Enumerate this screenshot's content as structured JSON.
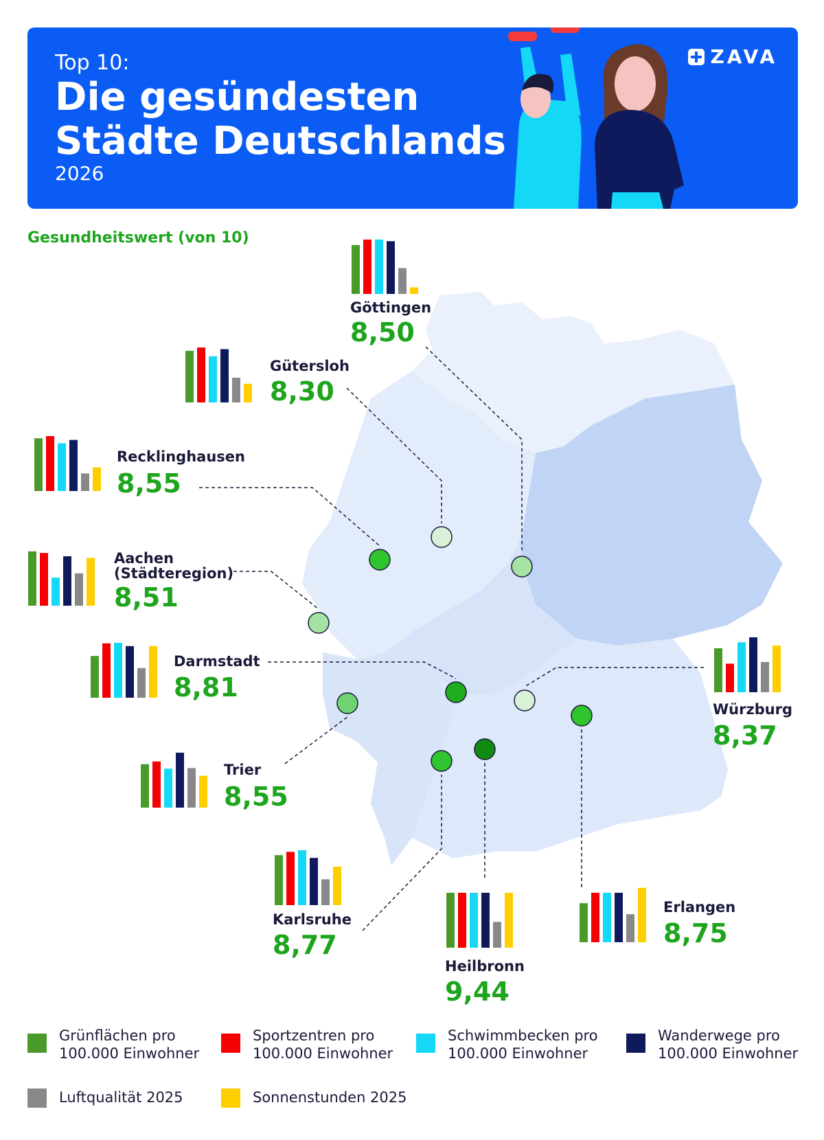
{
  "header": {
    "kicker": "Top 10:",
    "title_line1": "Die gesündesten",
    "title_line2": "Städte Deutschlands",
    "year": "2026",
    "logo": "ZAVA",
    "bg_color": "#0a5cf5"
  },
  "subtitle": "Gesundheitswert (von 10)",
  "chart_data": {
    "type": "bar",
    "title": "Gesundheitswert (von 10)",
    "categories": [
      "Grünflächen pro 100.000 Einwohner",
      "Sportzentren pro 100.000 Einwohner",
      "Schwimmbecken pro 100.000 Einwohner",
      "Wanderwege pro 100.000 Einwohner",
      "Luftqualität 2025",
      "Sonnenstunden 2025"
    ],
    "colors": [
      "#4a9a2a",
      "#f40000",
      "#14d8f5",
      "#0e1a5c",
      "#888888",
      "#ffce00"
    ],
    "ylim": [
      0,
      1
    ],
    "cities": [
      {
        "name": "Göttingen",
        "score": "8,50",
        "values": [
          0.89,
          0.99,
          0.99,
          0.96,
          0.47,
          0.12
        ]
      },
      {
        "name": "Gütersloh",
        "score": "8,30",
        "values": [
          0.94,
          1.0,
          0.84,
          0.97,
          0.45,
          0.34
        ]
      },
      {
        "name": "Recklinghausen",
        "score": "8,55",
        "values": [
          0.96,
          1.0,
          0.87,
          0.93,
          0.32,
          0.43
        ]
      },
      {
        "name": "Aachen\n(Städteregion)",
        "score": "8,51",
        "values": [
          0.99,
          0.96,
          0.51,
          0.9,
          0.59,
          0.87
        ]
      },
      {
        "name": "Darmstadt",
        "score": "8,81",
        "values": [
          0.76,
          0.99,
          1.0,
          0.94,
          0.54,
          0.94
        ]
      },
      {
        "name": "Trier",
        "score": "8,55",
        "values": [
          0.79,
          0.84,
          0.71,
          1.0,
          0.72,
          0.58
        ]
      },
      {
        "name": "Karlsruhe",
        "score": "8,77",
        "values": [
          0.91,
          0.97,
          1.0,
          0.86,
          0.47,
          0.7
        ]
      },
      {
        "name": "Heilbronn",
        "score": "9,44",
        "values": [
          1.0,
          1.0,
          1.0,
          1.0,
          0.47,
          1.0
        ]
      },
      {
        "name": "Erlangen",
        "score": "8,75",
        "values": [
          0.71,
          0.9,
          0.9,
          0.9,
          0.51,
          0.99
        ]
      },
      {
        "name": "Würzburg",
        "score": "8,37",
        "values": [
          0.8,
          0.52,
          0.91,
          1.0,
          0.55,
          0.85
        ]
      }
    ]
  },
  "legend": [
    {
      "label": "Grünflächen pro\n100.000 Einwohner",
      "color": "#4a9a2a"
    },
    {
      "label": "Sportzentren pro\n100.000 Einwohner",
      "color": "#f40000"
    },
    {
      "label": "Schwimmbecken pro\n100.000 Einwohner",
      "color": "#14d8f5"
    },
    {
      "label": "Wanderwege pro\n100.000 Einwohner",
      "color": "#0e1a5c"
    },
    {
      "label": "Luftqualität 2025",
      "color": "#888888"
    },
    {
      "label": "Sonnenstunden 2025",
      "color": "#ffce00"
    }
  ]
}
